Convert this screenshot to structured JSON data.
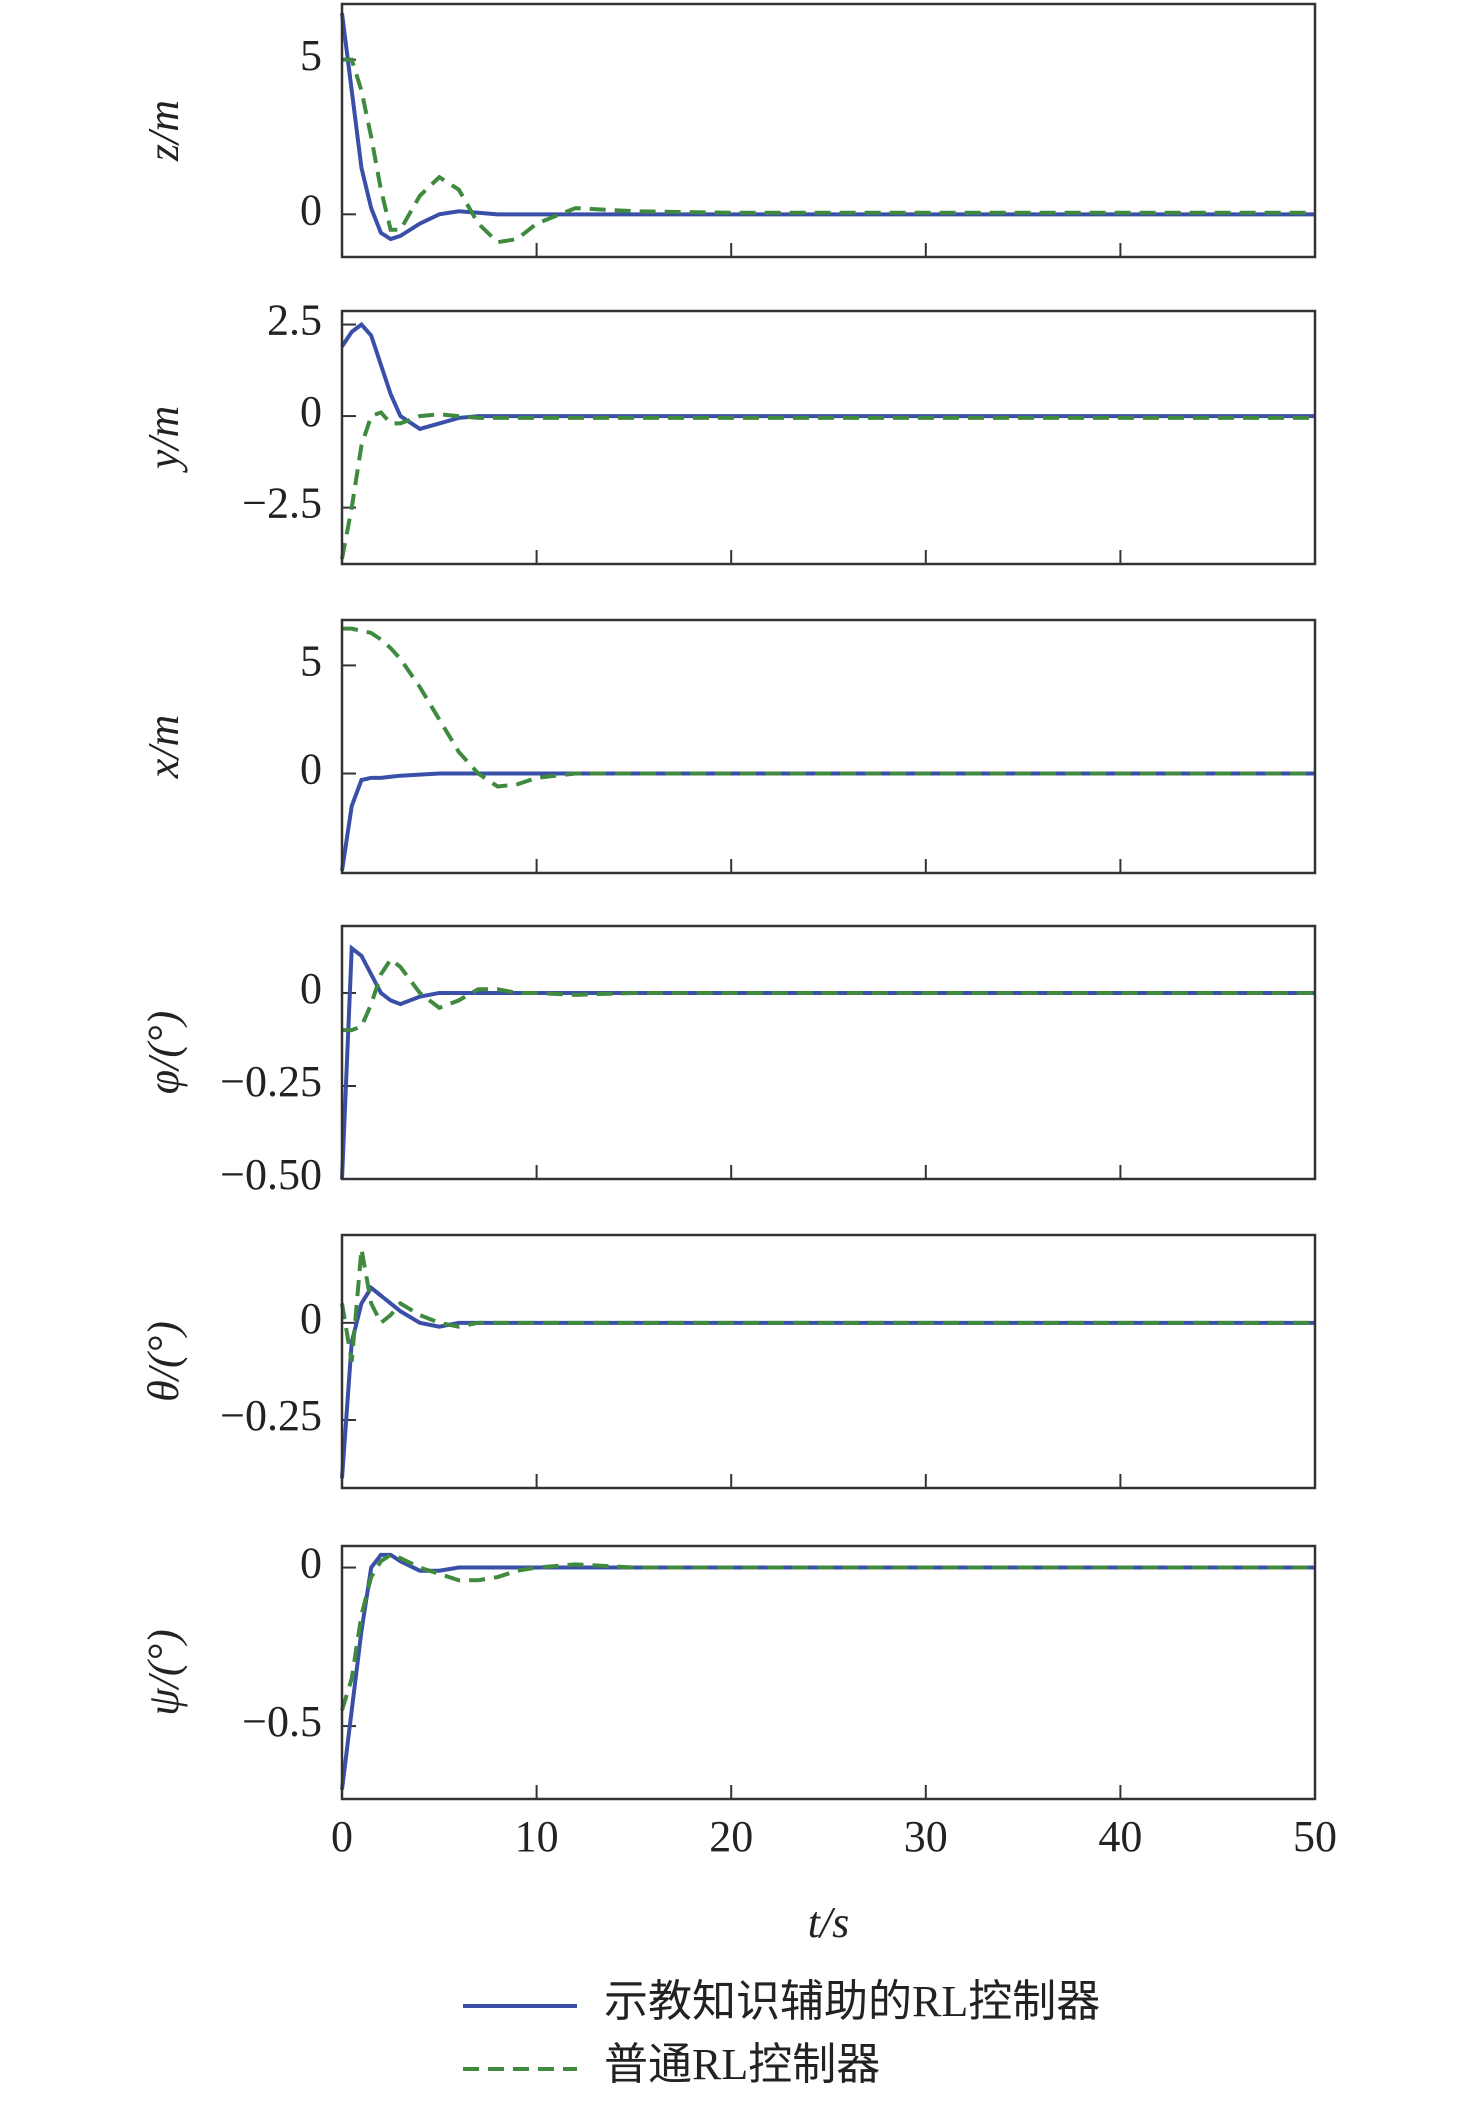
{
  "chart_data": [
    {
      "type": "line",
      "ylabel": "z/m",
      "xlim": [
        0,
        50
      ],
      "xticks": [
        0,
        10,
        20,
        30,
        40,
        50
      ],
      "ylim": [
        -1.38,
        6.8
      ],
      "yticks": [
        0,
        5
      ],
      "x": [
        0,
        0.5,
        1,
        1.5,
        2,
        2.5,
        3,
        4,
        5,
        6,
        7,
        8,
        9,
        10,
        12,
        15,
        20,
        30,
        40,
        50
      ],
      "series": [
        {
          "color": "#3a4fa8",
          "line_style": "solid",
          "values": [
            6.5,
            4,
            1.5,
            0.2,
            -0.6,
            -0.8,
            -0.7,
            -0.3,
            0,
            0.1,
            0.05,
            0,
            0,
            0,
            0,
            0,
            0,
            0,
            0,
            0
          ]
        },
        {
          "color": "#3f8a3f",
          "line_style": "dashed",
          "values": [
            5,
            5,
            4,
            2.5,
            0.8,
            -0.5,
            -0.5,
            0.6,
            1.2,
            0.8,
            -0.3,
            -0.9,
            -0.8,
            -0.3,
            0.2,
            0.1,
            0.05,
            0.05,
            0.05,
            0.05
          ]
        }
      ]
    },
    {
      "type": "line",
      "ylabel": "y/m",
      "xlim": [
        0,
        50
      ],
      "xticks": [
        0,
        10,
        20,
        30,
        40,
        50
      ],
      "ylim": [
        -4.04,
        2.87
      ],
      "yticks": [
        {
          "value": -2.5,
          "label": "−2.5"
        },
        0,
        2.5
      ],
      "x": [
        0,
        0.5,
        1,
        1.5,
        2,
        2.5,
        3,
        4,
        5,
        6,
        7,
        8,
        9,
        10,
        12,
        15,
        20,
        30,
        40,
        50
      ],
      "series": [
        {
          "color": "#3a4fa8",
          "line_style": "solid",
          "values": [
            1.9,
            2.3,
            2.5,
            2.2,
            1.4,
            0.6,
            0,
            -0.35,
            -0.2,
            -0.05,
            0,
            0,
            0,
            0,
            0,
            0,
            0,
            0,
            0,
            0
          ]
        },
        {
          "color": "#3f8a3f",
          "line_style": "dashed",
          "values": [
            -3.9,
            -2.5,
            -0.8,
            0,
            0.1,
            -0.2,
            -0.2,
            0,
            0.05,
            0,
            -0.05,
            -0.05,
            -0.05,
            -0.05,
            -0.05,
            -0.05,
            -0.05,
            -0.05,
            -0.05,
            -0.05
          ]
        }
      ]
    },
    {
      "type": "line",
      "ylabel": "x/m",
      "xlim": [
        0,
        50
      ],
      "xticks": [
        0,
        10,
        20,
        30,
        40,
        50
      ],
      "ylim": [
        -4.6,
        7.1
      ],
      "yticks": [
        0,
        5
      ],
      "x": [
        0,
        0.5,
        1,
        1.5,
        2,
        2.5,
        3,
        4,
        5,
        6,
        7,
        8,
        9,
        10,
        12,
        15,
        20,
        30,
        40,
        50
      ],
      "series": [
        {
          "color": "#3a4fa8",
          "line_style": "solid",
          "values": [
            -4.5,
            -1.5,
            -0.3,
            -0.2,
            -0.2,
            -0.15,
            -0.1,
            -0.05,
            0,
            0,
            0,
            0,
            0,
            0,
            0,
            0,
            0,
            0,
            0,
            0
          ]
        },
        {
          "color": "#3f8a3f",
          "line_style": "dashed",
          "values": [
            6.7,
            6.7,
            6.6,
            6.5,
            6.2,
            5.8,
            5.3,
            4,
            2.5,
            1,
            0,
            -0.6,
            -0.5,
            -0.2,
            0,
            0,
            0,
            0,
            0,
            0
          ]
        }
      ]
    },
    {
      "type": "line",
      "ylabel": "φ/(°)",
      "xlim": [
        0,
        50
      ],
      "xticks": [
        0,
        10,
        20,
        30,
        40,
        50
      ],
      "ylim": [
        -0.5,
        0.18
      ],
      "yticks": [
        {
          "value": -0.5,
          "label": "−0.50"
        },
        {
          "value": -0.25,
          "label": "−0.25"
        },
        0
      ],
      "x": [
        0,
        0.5,
        1,
        1.5,
        2,
        2.5,
        3,
        4,
        5,
        6,
        7,
        8,
        9,
        10,
        12,
        15,
        20,
        30,
        40,
        50
      ],
      "series": [
        {
          "color": "#3a4fa8",
          "line_style": "solid",
          "values": [
            -0.5,
            0.12,
            0.1,
            0.05,
            0,
            -0.02,
            -0.03,
            -0.01,
            0,
            0,
            0,
            0,
            0,
            0,
            0,
            0,
            0,
            0,
            0,
            0
          ]
        },
        {
          "color": "#3f8a3f",
          "line_style": "dashed",
          "values": [
            -0.1,
            -0.1,
            -0.09,
            -0.03,
            0.05,
            0.09,
            0.07,
            0,
            -0.04,
            -0.02,
            0.01,
            0.01,
            0,
            0,
            -0.005,
            0,
            0,
            0,
            0,
            0
          ]
        }
      ]
    },
    {
      "type": "line",
      "ylabel": "θ/(°)",
      "xlim": [
        0,
        50
      ],
      "xticks": [
        0,
        10,
        20,
        30,
        40,
        50
      ],
      "ylim": [
        -0.425,
        0.226
      ],
      "yticks": [
        {
          "value": -0.25,
          "label": "−0.25"
        },
        0
      ],
      "x": [
        0,
        0.5,
        1,
        1.5,
        2,
        2.5,
        3,
        4,
        5,
        6,
        7,
        8,
        9,
        10,
        12,
        15,
        20,
        30,
        40,
        50
      ],
      "series": [
        {
          "color": "#3a4fa8",
          "line_style": "solid",
          "values": [
            -0.4,
            -0.05,
            0.05,
            0.09,
            0.07,
            0.05,
            0.03,
            0,
            -0.01,
            0,
            0,
            0,
            0,
            0,
            0,
            0,
            0,
            0,
            0,
            0
          ]
        },
        {
          "color": "#3f8a3f",
          "line_style": "dashed",
          "values": [
            0.05,
            -0.1,
            0.19,
            0.05,
            0,
            0.02,
            0.05,
            0.02,
            0,
            -0.01,
            0,
            0,
            0,
            0,
            0,
            0,
            0,
            0,
            0,
            0
          ]
        }
      ]
    },
    {
      "type": "line",
      "ylabel": "ψ/(°)",
      "xlabel": "t/s",
      "xlim": [
        0,
        50
      ],
      "xticks": [
        0,
        10,
        20,
        30,
        40,
        50
      ],
      "ylim": [
        -0.73,
        0.068
      ],
      "yticks": [
        {
          "value": -0.5,
          "label": "−0.5"
        },
        0
      ],
      "show_xtick_labels": true,
      "x": [
        0,
        0.5,
        1,
        1.5,
        2,
        2.5,
        3,
        4,
        5,
        6,
        7,
        8,
        9,
        10,
        12,
        15,
        20,
        30,
        40,
        50
      ],
      "series": [
        {
          "name": "示教知识辅助的RL控制器",
          "color": "#3a4fa8",
          "line_style": "solid",
          "values": [
            -0.7,
            -0.45,
            -0.2,
            0,
            0.04,
            0.04,
            0.02,
            -0.01,
            -0.01,
            0,
            0,
            0,
            0,
            0,
            0,
            0,
            0,
            0,
            0,
            0
          ]
        },
        {
          "name": "普通RL控制器",
          "color": "#3f8a3f",
          "line_style": "dashed",
          "values": [
            -0.45,
            -0.35,
            -0.15,
            -0.03,
            0.02,
            0.04,
            0.03,
            0,
            -0.02,
            -0.04,
            -0.04,
            -0.03,
            -0.01,
            0,
            0.01,
            0,
            0,
            0,
            0,
            0
          ]
        }
      ]
    }
  ]
}
